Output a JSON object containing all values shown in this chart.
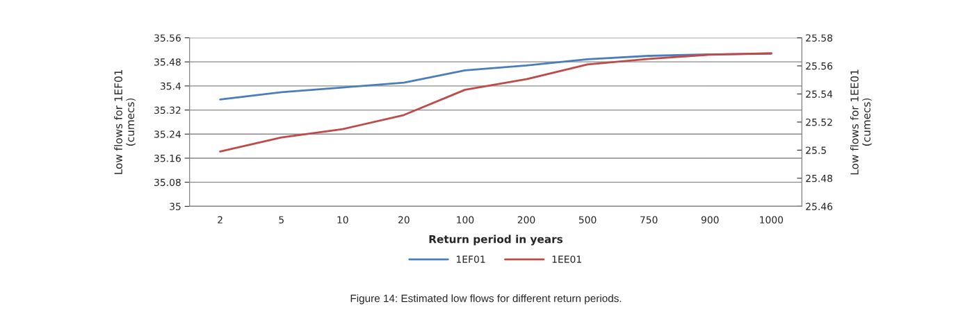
{
  "chart_data": {
    "type": "line",
    "xlabel": "Return period in years",
    "ylabel": "Low flows for 1EF01\n(cumecs)",
    "y2label": "Low flows for 1EE01\n(cumecs)",
    "categories": [
      "2",
      "5",
      "10",
      "20",
      "100",
      "200",
      "500",
      "750",
      "900",
      "1000"
    ],
    "series": [
      {
        "name": "1EF01",
        "color": "#4a7ebb",
        "values": [
          35.355,
          35.379,
          35.395,
          35.411,
          35.452,
          35.468,
          35.489,
          35.5,
          35.505,
          35.507
        ]
      },
      {
        "name": "1EE01",
        "color": "#be4b48",
        "axis": "y2",
        "values": [
          25.499,
          25.509,
          25.515,
          25.525,
          25.543,
          25.5505,
          25.561,
          25.565,
          25.568,
          25.569
        ]
      }
    ],
    "ylim": [
      35,
      35.56
    ],
    "yticks": [
      35,
      35.08,
      35.16,
      35.24,
      35.32,
      35.4,
      35.48,
      35.56
    ],
    "y2lim": [
      25.46,
      25.58
    ],
    "y2ticks": [
      25.46,
      25.48,
      25.5,
      25.52,
      25.54,
      25.56,
      25.58
    ],
    "grid": "y",
    "legend": "bottom",
    "marker": "none",
    "line_style": "solid",
    "annotations": [
      "Figure 14: Estimated low flows for different return periods."
    ]
  }
}
